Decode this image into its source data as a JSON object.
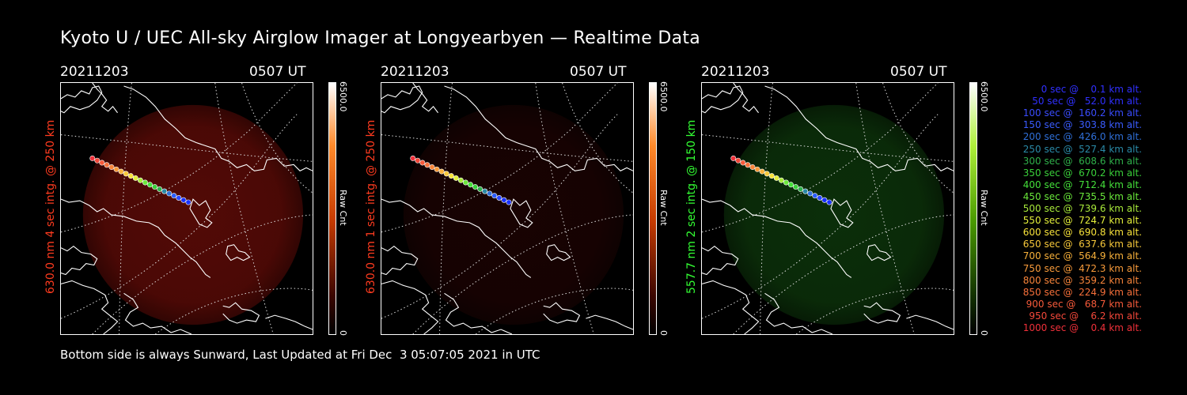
{
  "title": "Kyoto U / UEC All-sky Airglow Imager at Longyearbyen — Realtime Data",
  "panels": [
    {
      "date": "20211203",
      "time": "0507 UT",
      "side_label": "630.0 nm 4 sec intg. @ 250 km",
      "side_color": "#ff3b1f",
      "cbar_max": "6500.0",
      "cbar_min": "0",
      "cbar_unit": "Raw Cnt",
      "cbar_gradient": "linear-gradient(to bottom,#ffffff,#ff8a2a 25%,#c43a00 55%,#3a0600 85%,#000)",
      "glow": "#6e0d08",
      "glow_opacity": 0.75
    },
    {
      "date": "20211203",
      "time": "0507 UT",
      "side_label": "630.0 nm 1 sec intg. @ 250 km",
      "side_color": "#ff3b1f",
      "cbar_max": "6500.0",
      "cbar_min": "0",
      "cbar_unit": "Raw Cnt",
      "cbar_gradient": "linear-gradient(to bottom,#ffffff,#ff8a2a 25%,#c43a00 55%,#3a0600 85%,#000)",
      "glow": "#2c0504",
      "glow_opacity": 0.55
    },
    {
      "date": "20211203",
      "time": "0507 UT",
      "side_label": "557.7 nm 2 sec intg. @ 150 km",
      "side_color": "#33ff33",
      "cbar_max": "6500.0",
      "cbar_min": "0",
      "cbar_unit": "Raw Cnt",
      "cbar_gradient": "linear-gradient(to bottom,#ffffff,#aef03a 25%,#4a9a00 55%,#123000 85%,#000)",
      "glow": "#0e3a0c",
      "glow_opacity": 0.8
    }
  ],
  "footer": "Bottom side is always Sunward, Last Updated at Fri Dec  3 05:07:05 2021 in UTC",
  "legend": [
    {
      "text": "   0 sec @    0.1 km alt.",
      "color": "#3030ff"
    },
    {
      "text": "  50 sec @   52.0 km alt.",
      "color": "#3030ff"
    },
    {
      "text": " 100 sec @  160.2 km alt.",
      "color": "#3a4cff"
    },
    {
      "text": " 150 sec @  303.8 km alt.",
      "color": "#3a5cff"
    },
    {
      "text": " 200 sec @  426.0 km alt.",
      "color": "#2f6fd8"
    },
    {
      "text": " 250 sec @  527.4 km alt.",
      "color": "#2a8aa8"
    },
    {
      "text": " 300 sec @  608.6 km alt.",
      "color": "#2fb04a"
    },
    {
      "text": " 350 sec @  670.2 km alt.",
      "color": "#3ad03a"
    },
    {
      "text": " 400 sec @  712.4 km alt.",
      "color": "#44e03a"
    },
    {
      "text": " 450 sec @  735.5 km alt.",
      "color": "#6ae83a"
    },
    {
      "text": " 500 sec @  739.6 km alt.",
      "color": "#a8ea3a"
    },
    {
      "text": " 550 sec @  724.7 km alt.",
      "color": "#e4ef3a"
    },
    {
      "text": " 600 sec @  690.8 km alt.",
      "color": "#f7e23a"
    },
    {
      "text": " 650 sec @  637.6 km alt.",
      "color": "#f7c83a"
    },
    {
      "text": " 700 sec @  564.9 km alt.",
      "color": "#f7b03a"
    },
    {
      "text": " 750 sec @  472.3 km alt.",
      "color": "#f79a3a"
    },
    {
      "text": " 800 sec @  359.2 km alt.",
      "color": "#f7843a"
    },
    {
      "text": " 850 sec @  224.9 km alt.",
      "color": "#f7703a"
    },
    {
      "text": " 900 sec @   68.7 km alt.",
      "color": "#f75a3a"
    },
    {
      "text": " 950 sec @    6.2 km alt.",
      "color": "#f4483a"
    },
    {
      "text": "1000 sec @    0.4 km alt.",
      "color": "#f0303a"
    }
  ]
}
